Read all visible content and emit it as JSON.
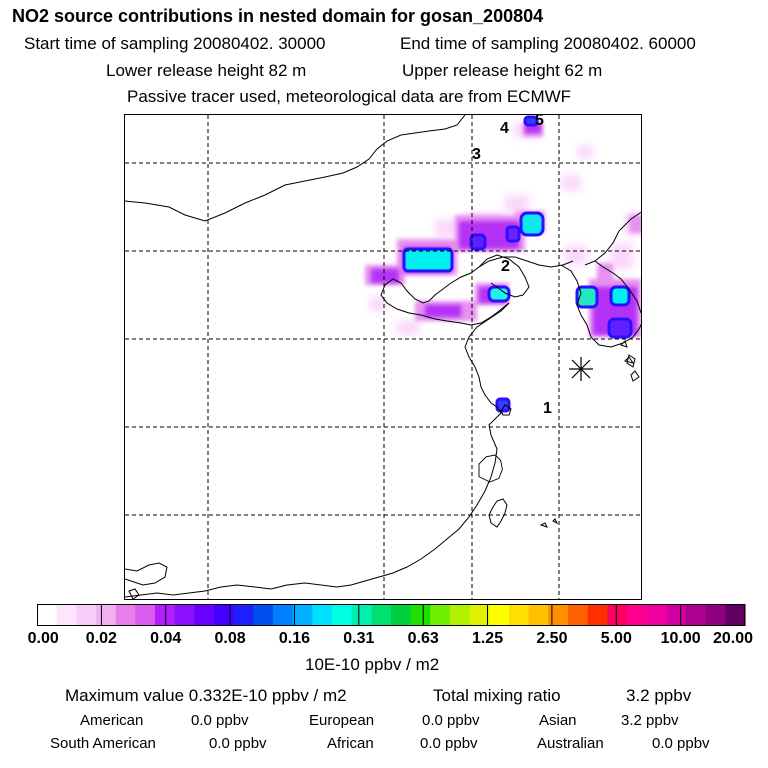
{
  "title": "NO2 source contributions in nested domain for gosan_200804",
  "sampling": {
    "start": "Start time of sampling 20080402. 30000",
    "end": "End time of sampling 20080402. 60000"
  },
  "release": {
    "lower": "Lower release height   82 m",
    "upper": "Upper release height   62 m"
  },
  "subtitle": "Passive tracer used, meteorological data are from ECMWF",
  "map": {
    "trajectory_labels": [
      "1",
      "2",
      "3",
      "4",
      "5"
    ],
    "receptor_marker": "station-star-icon"
  },
  "colorbar": {
    "ticks": [
      "0.00",
      "0.02",
      "0.04",
      "0.08",
      "0.16",
      "0.31",
      "0.63",
      "1.25",
      "2.50",
      "5.00",
      "10.00",
      "20.00"
    ],
    "unit": "10E-10 ppbv / m2",
    "colors": [
      "#ffffff",
      "#fde6fd",
      "#f8cdf8",
      "#f2b2f2",
      "#e87ee8",
      "#d85cf0",
      "#b020ff",
      "#8a10ff",
      "#6a00ff",
      "#4400ff",
      "#2020ff",
      "#0050f0",
      "#0080ff",
      "#00b0ff",
      "#00e0ff",
      "#00ffe0",
      "#00f0b0",
      "#00e070",
      "#00d040",
      "#20e000",
      "#70f000",
      "#b0f000",
      "#e0f000",
      "#ffff00",
      "#ffe000",
      "#ffc000",
      "#ff9000",
      "#ff6000",
      "#ff3000",
      "#ff0060",
      "#ff0090",
      "#f000a0",
      "#d000a0",
      "#b00090",
      "#900080",
      "#600060"
    ]
  },
  "stats": {
    "max_value": "Maximum value  0.332E-10 ppbv / m2",
    "total": "Total mixing ratio",
    "total_value": "3.2 ppbv",
    "regions": [
      {
        "name": "American",
        "value": "0.0 ppbv"
      },
      {
        "name": "European",
        "value": "0.0 ppbv"
      },
      {
        "name": "Asian",
        "value": "3.2 ppbv"
      },
      {
        "name": "South American",
        "value": "0.0 ppbv"
      },
      {
        "name": "African",
        "value": "0.0 ppbv"
      },
      {
        "name": "Australian",
        "value": "0.0 ppbv"
      }
    ]
  }
}
